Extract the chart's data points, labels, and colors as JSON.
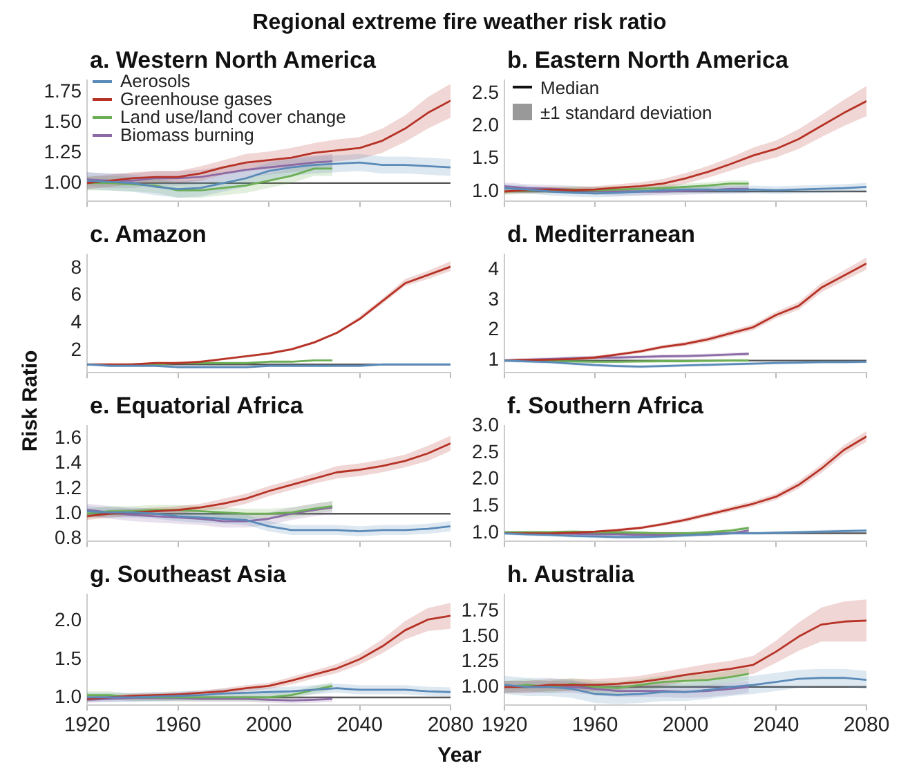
{
  "chart_data": [
    {
      "type": "line",
      "title": "a. Western North America",
      "annotations": [
        "Regional extreme fire weather risk ratio"
      ],
      "x": [
        1920,
        1930,
        1940,
        1950,
        1960,
        1970,
        1980,
        1990,
        2000,
        2010,
        2020,
        2030,
        2040,
        2050,
        2060,
        2070,
        2080
      ],
      "xlim": [
        1920,
        2080
      ],
      "xticks": [
        1920,
        1960,
        2000,
        2040,
        2080
      ],
      "ylim": [
        0.85,
        1.85
      ],
      "yticks": [
        {
          "value": 1,
          "label": "1.00"
        },
        1.25,
        {
          "value": 1.5,
          "label": "1.50"
        },
        1.75
      ],
      "tick_labels": "y",
      "legend": "top left",
      "ref_lines": [
        {
          "axis": "y",
          "value": 1,
          "color": "#555555"
        }
      ],
      "series": [
        {
          "name": "Aerosols",
          "color": "#5a8ab8",
          "values": [
            1.02,
            1.01,
            1.0,
            0.97,
            0.95,
            0.96,
            1.0,
            1.04,
            1.1,
            1.13,
            1.15,
            1.16,
            1.17,
            1.15,
            1.15,
            1.14,
            1.13
          ],
          "lower": [
            0.95,
            0.94,
            0.93,
            0.9,
            0.88,
            0.89,
            0.93,
            0.97,
            1.03,
            1.06,
            1.08,
            1.09,
            1.1,
            1.08,
            1.08,
            1.07,
            1.06
          ],
          "upper": [
            1.09,
            1.08,
            1.07,
            1.04,
            1.02,
            1.03,
            1.07,
            1.11,
            1.17,
            1.2,
            1.22,
            1.23,
            1.24,
            1.22,
            1.22,
            1.21,
            1.2
          ]
        },
        {
          "name": "Greenhouse gases",
          "color": "#b63226",
          "values": [
            1.0,
            1.02,
            1.04,
            1.05,
            1.05,
            1.08,
            1.13,
            1.17,
            1.19,
            1.21,
            1.25,
            1.27,
            1.29,
            1.35,
            1.45,
            1.58,
            1.68
          ],
          "lower": [
            0.95,
            0.97,
            0.99,
            1.0,
            1.0,
            1.02,
            1.07,
            1.1,
            1.12,
            1.13,
            1.17,
            1.18,
            1.2,
            1.25,
            1.34,
            1.45,
            1.54
          ],
          "upper": [
            1.05,
            1.07,
            1.09,
            1.1,
            1.1,
            1.14,
            1.19,
            1.24,
            1.26,
            1.29,
            1.33,
            1.36,
            1.38,
            1.45,
            1.56,
            1.71,
            1.82
          ]
        },
        {
          "name": "Land use/land cover change",
          "color": "#6cae55",
          "x": [
            1920,
            1930,
            1940,
            1950,
            1960,
            1970,
            1980,
            1990,
            2000,
            2010,
            2020,
            2028
          ],
          "values": [
            1.0,
            1.0,
            0.99,
            0.98,
            0.94,
            0.94,
            0.96,
            0.98,
            1.02,
            1.06,
            1.12,
            1.12
          ],
          "lower": [
            0.94,
            0.94,
            0.93,
            0.92,
            0.88,
            0.88,
            0.9,
            0.92,
            0.96,
            1.0,
            1.06,
            1.06
          ],
          "upper": [
            1.06,
            1.06,
            1.05,
            1.04,
            1.0,
            1.0,
            1.02,
            1.04,
            1.08,
            1.12,
            1.18,
            1.18
          ]
        },
        {
          "name": "Biomass burning",
          "color": "#8b6aa6",
          "x": [
            1920,
            1930,
            1940,
            1950,
            1960,
            1970,
            1980,
            1990,
            2000,
            2010,
            2020,
            2028
          ],
          "values": [
            1.03,
            1.02,
            1.02,
            1.04,
            1.04,
            1.05,
            1.08,
            1.11,
            1.13,
            1.15,
            1.17,
            1.18
          ],
          "lower": [
            0.97,
            0.96,
            0.96,
            0.98,
            0.98,
            0.99,
            1.02,
            1.05,
            1.07,
            1.09,
            1.11,
            1.12
          ],
          "upper": [
            1.09,
            1.08,
            1.08,
            1.1,
            1.1,
            1.11,
            1.14,
            1.17,
            1.19,
            1.21,
            1.23,
            1.24
          ]
        }
      ]
    },
    {
      "type": "line",
      "title": "b. Eastern North America",
      "annotations": [
        "Median",
        "±1 standard deviation"
      ],
      "x": [
        1920,
        1930,
        1940,
        1950,
        1960,
        1970,
        1980,
        1990,
        2000,
        2010,
        2020,
        2030,
        2040,
        2050,
        2060,
        2070,
        2080
      ],
      "xlim": [
        1920,
        2080
      ],
      "xticks": [
        1920,
        1960,
        2000,
        2040,
        2080
      ],
      "ylim": [
        0.85,
        2.7
      ],
      "yticks": [
        {
          "value": 1,
          "label": "1.0"
        },
        1.5,
        {
          "value": 2,
          "label": "2.0"
        },
        2.5
      ],
      "tick_labels": "y",
      "ref_lines": [
        {
          "axis": "y",
          "value": 1,
          "color": "#555555"
        }
      ],
      "series": [
        {
          "color": "#5a8ab8",
          "values": [
            1.05,
            1.03,
            1.0,
            0.98,
            0.97,
            0.98,
            1.0,
            1.02,
            1.03,
            1.03,
            1.02,
            1.03,
            1.02,
            1.03,
            1.04,
            1.05,
            1.07
          ],
          "lower": [
            0.99,
            0.97,
            0.94,
            0.92,
            0.91,
            0.92,
            0.94,
            0.96,
            0.97,
            0.97,
            0.96,
            0.97,
            0.96,
            0.97,
            0.98,
            0.99,
            1.01
          ],
          "upper": [
            1.11,
            1.09,
            1.06,
            1.04,
            1.03,
            1.04,
            1.06,
            1.08,
            1.09,
            1.09,
            1.08,
            1.09,
            1.08,
            1.09,
            1.1,
            1.11,
            1.13
          ]
        },
        {
          "color": "#b63226",
          "values": [
            1.0,
            1.02,
            1.03,
            1.02,
            1.03,
            1.06,
            1.08,
            1.12,
            1.2,
            1.3,
            1.42,
            1.55,
            1.65,
            1.8,
            2.0,
            2.2,
            2.38
          ],
          "lower": [
            0.96,
            0.98,
            0.99,
            0.98,
            0.98,
            1.01,
            1.02,
            1.05,
            1.12,
            1.21,
            1.32,
            1.43,
            1.52,
            1.65,
            1.83,
            2.0,
            2.15
          ],
          "upper": [
            1.04,
            1.06,
            1.07,
            1.06,
            1.08,
            1.11,
            1.14,
            1.19,
            1.28,
            1.39,
            1.52,
            1.67,
            1.78,
            1.95,
            2.17,
            2.4,
            2.61
          ]
        },
        {
          "color": "#6cae55",
          "x": [
            1920,
            1930,
            1940,
            1950,
            1960,
            1970,
            1980,
            1990,
            2000,
            2010,
            2020,
            2028
          ],
          "values": [
            1.0,
            1.01,
            1.02,
            1.03,
            1.02,
            1.03,
            1.04,
            1.05,
            1.07,
            1.09,
            1.12,
            1.12
          ],
          "lower": [
            0.95,
            0.96,
            0.97,
            0.98,
            0.97,
            0.98,
            0.99,
            1.0,
            1.02,
            1.04,
            1.07,
            1.07
          ],
          "upper": [
            1.05,
            1.06,
            1.07,
            1.08,
            1.07,
            1.08,
            1.09,
            1.1,
            1.12,
            1.14,
            1.17,
            1.17
          ]
        },
        {
          "color": "#8b6aa6",
          "x": [
            1920,
            1930,
            1940,
            1950,
            1960,
            1970,
            1980,
            1990,
            2000,
            2010,
            2020,
            2028
          ],
          "values": [
            1.08,
            1.05,
            1.04,
            1.03,
            1.01,
            1.0,
            1.0,
            1.0,
            1.01,
            1.02,
            1.04,
            1.04
          ],
          "lower": [
            1.02,
            0.99,
            0.98,
            0.97,
            0.95,
            0.94,
            0.94,
            0.94,
            0.95,
            0.96,
            0.98,
            0.98
          ],
          "upper": [
            1.14,
            1.11,
            1.1,
            1.09,
            1.07,
            1.06,
            1.06,
            1.06,
            1.07,
            1.08,
            1.1,
            1.1
          ]
        }
      ]
    },
    {
      "type": "line",
      "title": "c. Amazon",
      "x": [
        1920,
        1930,
        1940,
        1950,
        1960,
        1970,
        1980,
        1990,
        2000,
        2010,
        2020,
        2030,
        2040,
        2050,
        2060,
        2070,
        2080
      ],
      "xlim": [
        1920,
        2080
      ],
      "xticks": [
        1920,
        1960,
        2000,
        2040,
        2080
      ],
      "ylim": [
        0.4,
        9
      ],
      "yticks": [
        2,
        4,
        6,
        8
      ],
      "tick_labels": "y",
      "ref_lines": [
        {
          "axis": "y",
          "value": 1,
          "color": "#555555"
        }
      ],
      "series": [
        {
          "color": "#5a8ab8",
          "values": [
            1.0,
            0.9,
            0.9,
            0.9,
            0.8,
            0.8,
            0.8,
            0.8,
            0.9,
            0.9,
            0.9,
            0.9,
            0.9,
            1.0,
            1.0,
            1.0,
            1.0
          ]
        },
        {
          "color": "#b63226",
          "values": [
            1.0,
            1.0,
            1.0,
            1.1,
            1.1,
            1.2,
            1.4,
            1.6,
            1.8,
            2.1,
            2.6,
            3.3,
            4.3,
            5.6,
            6.9,
            7.5,
            8.1
          ],
          "lower": [
            1.0,
            1.0,
            1.0,
            1.0,
            1.1,
            1.1,
            1.3,
            1.5,
            1.7,
            2.0,
            2.5,
            3.2,
            4.2,
            5.4,
            6.7,
            7.2,
            7.8
          ],
          "upper": [
            1.0,
            1.0,
            1.1,
            1.1,
            1.1,
            1.3,
            1.4,
            1.6,
            1.9,
            2.2,
            2.7,
            3.4,
            4.5,
            5.8,
            7.2,
            7.8,
            8.5
          ]
        },
        {
          "color": "#6cae55",
          "x": [
            1940,
            1950,
            1960,
            1970,
            1980,
            1990,
            2000,
            2010,
            2020,
            2028
          ],
          "values": [
            1.0,
            1.0,
            1.1,
            1.1,
            1.1,
            1.1,
            1.2,
            1.2,
            1.3,
            1.3
          ]
        }
      ]
    },
    {
      "type": "line",
      "title": "d. Mediterranean",
      "x": [
        1920,
        1930,
        1940,
        1950,
        1960,
        1970,
        1980,
        1990,
        2000,
        2010,
        2020,
        2030,
        2040,
        2050,
        2060,
        2070,
        2080
      ],
      "xlim": [
        1920,
        2080
      ],
      "xticks": [
        1920,
        1960,
        2000,
        2040,
        2080
      ],
      "ylim": [
        0.6,
        4.5
      ],
      "yticks": [
        1,
        2,
        3,
        4
      ],
      "tick_labels": "y",
      "ref_lines": [
        {
          "axis": "y",
          "value": 1,
          "color": "#555555"
        }
      ],
      "series": [
        {
          "color": "#5a8ab8",
          "values": [
            1.0,
            0.97,
            0.95,
            0.9,
            0.85,
            0.82,
            0.8,
            0.82,
            0.84,
            0.86,
            0.88,
            0.9,
            0.92,
            0.93,
            0.95,
            0.95,
            0.96
          ],
          "lower": [
            0.95,
            0.92,
            0.9,
            0.85,
            0.8,
            0.77,
            0.75,
            0.77,
            0.79,
            0.81,
            0.83,
            0.85,
            0.87,
            0.88,
            0.9,
            0.9,
            0.91
          ],
          "upper": [
            1.05,
            1.02,
            1.0,
            0.95,
            0.9,
            0.87,
            0.85,
            0.87,
            0.89,
            0.91,
            0.93,
            0.95,
            0.97,
            0.98,
            1.0,
            1.0,
            1.01
          ]
        },
        {
          "color": "#b63226",
          "values": [
            1.0,
            1.02,
            1.03,
            1.05,
            1.1,
            1.2,
            1.3,
            1.45,
            1.55,
            1.7,
            1.9,
            2.1,
            2.5,
            2.8,
            3.4,
            3.8,
            4.2
          ],
          "lower": [
            0.96,
            0.98,
            0.99,
            1.01,
            1.05,
            1.15,
            1.24,
            1.39,
            1.48,
            1.62,
            1.81,
            2.0,
            2.39,
            2.67,
            3.25,
            3.63,
            4.0
          ],
          "upper": [
            1.04,
            1.06,
            1.07,
            1.09,
            1.15,
            1.25,
            1.36,
            1.51,
            1.62,
            1.78,
            1.99,
            2.2,
            2.61,
            2.93,
            3.55,
            3.97,
            4.4
          ]
        },
        {
          "color": "#6cae55",
          "x": [
            1920,
            1930,
            1940,
            1950,
            1960,
            1970,
            1980,
            1990,
            2000,
            2010,
            2020,
            2028
          ],
          "values": [
            1.0,
            1.0,
            0.98,
            0.97,
            0.96,
            0.96,
            0.97,
            0.98,
            0.98,
            0.99,
            1.0,
            1.0
          ],
          "lower": [
            0.95,
            0.95,
            0.93,
            0.92,
            0.91,
            0.91,
            0.92,
            0.93,
            0.93,
            0.94,
            0.95,
            0.95
          ],
          "upper": [
            1.05,
            1.05,
            1.03,
            1.02,
            1.01,
            1.01,
            1.02,
            1.03,
            1.03,
            1.04,
            1.05,
            1.05
          ]
        },
        {
          "color": "#8b6aa6",
          "x": [
            1920,
            1930,
            1940,
            1950,
            1960,
            1970,
            1980,
            1990,
            2000,
            2010,
            2020,
            2028
          ],
          "values": [
            1.0,
            1.03,
            1.05,
            1.08,
            1.1,
            1.1,
            1.12,
            1.14,
            1.15,
            1.17,
            1.2,
            1.22
          ],
          "lower": [
            0.94,
            0.97,
            0.99,
            1.02,
            1.04,
            1.04,
            1.06,
            1.08,
            1.09,
            1.11,
            1.14,
            1.16
          ],
          "upper": [
            1.06,
            1.09,
            1.11,
            1.14,
            1.16,
            1.16,
            1.18,
            1.2,
            1.21,
            1.23,
            1.26,
            1.28
          ]
        }
      ]
    },
    {
      "type": "line",
      "title": "e. Equatorial Africa",
      "ylabel": "Risk Ratio",
      "x": [
        1920,
        1930,
        1940,
        1950,
        1960,
        1970,
        1980,
        1990,
        2000,
        2010,
        2020,
        2030,
        2040,
        2050,
        2060,
        2070,
        2080
      ],
      "xlim": [
        1920,
        2080
      ],
      "xticks": [
        1920,
        1960,
        2000,
        2040,
        2080
      ],
      "ylim": [
        0.78,
        1.7
      ],
      "yticks": [
        0.8,
        {
          "value": 1,
          "label": "1.0"
        },
        1.2,
        1.4,
        1.6
      ],
      "tick_labels": "y",
      "ref_lines": [
        {
          "axis": "y",
          "value": 1,
          "color": "#555555"
        }
      ],
      "series": [
        {
          "color": "#5a8ab8",
          "values": [
            1.02,
            1.01,
            1.01,
            1.0,
            0.98,
            0.97,
            0.96,
            0.95,
            0.9,
            0.87,
            0.87,
            0.87,
            0.86,
            0.87,
            0.87,
            0.88,
            0.9
          ],
          "lower": [
            0.98,
            0.97,
            0.97,
            0.96,
            0.94,
            0.93,
            0.92,
            0.91,
            0.86,
            0.83,
            0.83,
            0.83,
            0.82,
            0.83,
            0.83,
            0.84,
            0.86
          ],
          "upper": [
            1.06,
            1.05,
            1.05,
            1.04,
            1.02,
            1.01,
            1.0,
            0.99,
            0.94,
            0.91,
            0.91,
            0.91,
            0.9,
            0.91,
            0.91,
            0.92,
            0.94
          ]
        },
        {
          "color": "#b63226",
          "values": [
            0.98,
            1.0,
            1.01,
            1.02,
            1.03,
            1.05,
            1.08,
            1.12,
            1.18,
            1.23,
            1.28,
            1.33,
            1.35,
            1.38,
            1.42,
            1.48,
            1.56
          ],
          "lower": [
            0.95,
            0.97,
            0.98,
            0.99,
            1.0,
            1.02,
            1.04,
            1.08,
            1.14,
            1.19,
            1.24,
            1.28,
            1.3,
            1.33,
            1.37,
            1.42,
            1.5
          ],
          "upper": [
            1.01,
            1.03,
            1.04,
            1.05,
            1.06,
            1.08,
            1.12,
            1.16,
            1.22,
            1.27,
            1.32,
            1.38,
            1.4,
            1.43,
            1.47,
            1.54,
            1.62
          ]
        },
        {
          "color": "#6cae55",
          "x": [
            1920,
            1930,
            1940,
            1950,
            1960,
            1970,
            1980,
            1990,
            2000,
            2010,
            2020,
            2028
          ],
          "values": [
            1.0,
            1.02,
            1.02,
            1.03,
            1.03,
            1.02,
            1.01,
            1.0,
            1.0,
            1.01,
            1.04,
            1.06
          ],
          "lower": [
            0.96,
            0.98,
            0.98,
            0.99,
            0.99,
            0.98,
            0.97,
            0.96,
            0.96,
            0.97,
            1.0,
            1.02
          ],
          "upper": [
            1.04,
            1.06,
            1.06,
            1.07,
            1.07,
            1.06,
            1.05,
            1.04,
            1.04,
            1.05,
            1.08,
            1.1
          ]
        },
        {
          "color": "#8b6aa6",
          "x": [
            1920,
            1930,
            1940,
            1950,
            1960,
            1970,
            1980,
            1990,
            2000,
            2010,
            2020,
            2028
          ],
          "values": [
            1.03,
            1.01,
            0.99,
            0.98,
            0.97,
            0.96,
            0.94,
            0.94,
            0.96,
            1.0,
            1.03,
            1.05
          ],
          "lower": [
            0.98,
            0.96,
            0.94,
            0.93,
            0.92,
            0.91,
            0.89,
            0.89,
            0.91,
            0.95,
            0.98,
            1.0
          ],
          "upper": [
            1.08,
            1.06,
            1.04,
            1.03,
            1.02,
            1.01,
            0.99,
            0.99,
            1.01,
            1.05,
            1.08,
            1.1
          ]
        }
      ]
    },
    {
      "type": "line",
      "title": "f. Southern Africa",
      "x": [
        1920,
        1930,
        1940,
        1950,
        1960,
        1970,
        1980,
        1990,
        2000,
        2010,
        2020,
        2030,
        2040,
        2050,
        2060,
        2070,
        2080
      ],
      "xlim": [
        1920,
        2080
      ],
      "xticks": [
        1920,
        1960,
        2000,
        2040,
        2080
      ],
      "ylim": [
        0.85,
        3.0
      ],
      "yticks": [
        {
          "value": 1,
          "label": "1.0"
        },
        1.5,
        {
          "value": 2,
          "label": "2.0"
        },
        2.5,
        {
          "value": 3,
          "label": "3.0"
        }
      ],
      "tick_labels": "y",
      "ref_lines": [
        {
          "axis": "y",
          "value": 1,
          "color": "#555555"
        }
      ],
      "series": [
        {
          "color": "#5a8ab8",
          "values": [
            1.0,
            0.98,
            0.97,
            0.95,
            0.94,
            0.93,
            0.93,
            0.94,
            0.96,
            0.98,
            1.0,
            1.0,
            1.01,
            1.02,
            1.03,
            1.04,
            1.05
          ],
          "lower": [
            0.97,
            0.95,
            0.94,
            0.92,
            0.91,
            0.9,
            0.9,
            0.91,
            0.93,
            0.95,
            0.97,
            0.97,
            0.98,
            0.99,
            1.0,
            1.01,
            1.02
          ],
          "upper": [
            1.03,
            1.01,
            1.0,
            0.98,
            0.97,
            0.96,
            0.96,
            0.97,
            0.99,
            1.01,
            1.03,
            1.03,
            1.04,
            1.05,
            1.06,
            1.07,
            1.08
          ]
        },
        {
          "color": "#b63226",
          "values": [
            1.0,
            1.0,
            1.0,
            1.01,
            1.03,
            1.06,
            1.1,
            1.17,
            1.25,
            1.35,
            1.45,
            1.55,
            1.68,
            1.9,
            2.2,
            2.55,
            2.8
          ],
          "lower": [
            0.98,
            0.98,
            0.98,
            0.99,
            1.01,
            1.03,
            1.07,
            1.14,
            1.21,
            1.31,
            1.4,
            1.5,
            1.62,
            1.83,
            2.12,
            2.46,
            2.7
          ],
          "upper": [
            1.02,
            1.02,
            1.02,
            1.03,
            1.05,
            1.09,
            1.13,
            1.2,
            1.29,
            1.39,
            1.5,
            1.6,
            1.74,
            1.97,
            2.28,
            2.64,
            2.9
          ]
        },
        {
          "color": "#6cae55",
          "x": [
            1920,
            1930,
            1940,
            1950,
            1960,
            1970,
            1980,
            1990,
            2000,
            2010,
            2020,
            2028
          ],
          "values": [
            1.02,
            1.02,
            1.02,
            1.03,
            1.02,
            1.02,
            1.01,
            1.0,
            1.0,
            1.02,
            1.05,
            1.1
          ],
          "lower": [
            0.99,
            0.99,
            0.99,
            1.0,
            0.99,
            0.99,
            0.98,
            0.97,
            0.97,
            0.99,
            1.02,
            1.07
          ],
          "upper": [
            1.05,
            1.05,
            1.05,
            1.06,
            1.05,
            1.05,
            1.04,
            1.03,
            1.03,
            1.05,
            1.08,
            1.13
          ]
        },
        {
          "color": "#8b6aa6",
          "x": [
            1920,
            1930,
            1940,
            1950,
            1960,
            1970,
            1980,
            1990,
            2000,
            2010,
            2020,
            2028
          ],
          "values": [
            1.0,
            1.0,
            1.0,
            0.99,
            0.98,
            0.98,
            0.97,
            0.97,
            0.97,
            0.98,
            1.0,
            1.05
          ],
          "lower": [
            0.97,
            0.97,
            0.97,
            0.96,
            0.95,
            0.95,
            0.94,
            0.94,
            0.94,
            0.95,
            0.97,
            1.02
          ],
          "upper": [
            1.03,
            1.03,
            1.03,
            1.02,
            1.01,
            1.01,
            1.0,
            1.0,
            1.0,
            1.01,
            1.03,
            1.08
          ]
        }
      ]
    },
    {
      "type": "line",
      "title": "g. Southeast Asia",
      "xlabel": "Year",
      "x": [
        1920,
        1930,
        1940,
        1950,
        1960,
        1970,
        1980,
        1990,
        2000,
        2010,
        2020,
        2030,
        2040,
        2050,
        2060,
        2070,
        2080
      ],
      "xlim": [
        1920,
        2080
      ],
      "xticks": [
        1920,
        1960,
        2000,
        2040,
        2080
      ],
      "ylim": [
        0.9,
        2.35
      ],
      "yticks": [
        {
          "value": 1,
          "label": "1.0"
        },
        1.5,
        {
          "value": 2,
          "label": "2.0"
        }
      ],
      "ref_lines": [
        {
          "axis": "y",
          "value": 1,
          "color": "#555555"
        }
      ],
      "series": [
        {
          "color": "#5a8ab8",
          "values": [
            1.0,
            1.0,
            1.0,
            1.01,
            1.02,
            1.03,
            1.05,
            1.06,
            1.07,
            1.08,
            1.1,
            1.12,
            1.1,
            1.1,
            1.1,
            1.08,
            1.07
          ],
          "lower": [
            0.94,
            0.94,
            0.94,
            0.95,
            0.96,
            0.97,
            0.99,
            1.0,
            1.01,
            1.02,
            1.04,
            1.06,
            1.04,
            1.04,
            1.04,
            1.02,
            1.01
          ],
          "upper": [
            1.06,
            1.06,
            1.06,
            1.07,
            1.08,
            1.09,
            1.11,
            1.12,
            1.13,
            1.14,
            1.16,
            1.18,
            1.16,
            1.16,
            1.16,
            1.14,
            1.13
          ]
        },
        {
          "color": "#b63226",
          "values": [
            0.98,
            1.0,
            1.02,
            1.03,
            1.04,
            1.06,
            1.08,
            1.12,
            1.15,
            1.22,
            1.3,
            1.38,
            1.5,
            1.67,
            1.88,
            2.02,
            2.07
          ],
          "lower": [
            0.95,
            0.97,
            0.99,
            1.0,
            1.01,
            1.03,
            1.04,
            1.08,
            1.11,
            1.17,
            1.25,
            1.32,
            1.43,
            1.58,
            1.76,
            1.87,
            1.9
          ],
          "upper": [
            1.01,
            1.03,
            1.05,
            1.06,
            1.07,
            1.09,
            1.12,
            1.16,
            1.19,
            1.27,
            1.35,
            1.44,
            1.57,
            1.76,
            2.0,
            2.17,
            2.24
          ]
        },
        {
          "color": "#6cae55",
          "x": [
            1920,
            1930,
            1940,
            1950,
            1960,
            1970,
            1980,
            1990,
            2000,
            2010,
            2020,
            2028
          ],
          "values": [
            1.03,
            1.03,
            1.0,
            1.0,
            1.0,
            1.0,
            1.0,
            1.0,
            1.0,
            1.03,
            1.1,
            1.15
          ],
          "lower": [
            0.98,
            0.98,
            0.95,
            0.95,
            0.95,
            0.95,
            0.95,
            0.95,
            0.95,
            0.98,
            1.05,
            1.1
          ],
          "upper": [
            1.08,
            1.08,
            1.05,
            1.05,
            1.05,
            1.05,
            1.05,
            1.05,
            1.05,
            1.08,
            1.15,
            1.2
          ]
        },
        {
          "color": "#8b6aa6",
          "x": [
            1920,
            1930,
            1940,
            1950,
            1960,
            1970,
            1980,
            1990,
            2000,
            2010,
            2020,
            2028
          ],
          "values": [
            0.97,
            0.98,
            0.99,
            0.99,
            0.99,
            0.98,
            0.98,
            0.98,
            0.97,
            0.96,
            0.97,
            0.98
          ],
          "lower": [
            0.93,
            0.94,
            0.95,
            0.95,
            0.95,
            0.94,
            0.94,
            0.94,
            0.93,
            0.92,
            0.93,
            0.94
          ],
          "upper": [
            1.01,
            1.02,
            1.03,
            1.03,
            1.03,
            1.02,
            1.02,
            1.02,
            1.01,
            1.0,
            1.01,
            1.02
          ]
        }
      ]
    },
    {
      "type": "line",
      "title": "h. Australia",
      "x": [
        1920,
        1930,
        1940,
        1950,
        1960,
        1970,
        1980,
        1990,
        2000,
        2010,
        2020,
        2030,
        2040,
        2050,
        2060,
        2070,
        2080
      ],
      "xlim": [
        1920,
        2080
      ],
      "xticks": [
        1920,
        1960,
        2000,
        2040,
        2080
      ],
      "ylim": [
        0.82,
        1.92
      ],
      "yticks": [
        {
          "value": 1,
          "label": "1.00"
        },
        1.25,
        {
          "value": 1.5,
          "label": "1.50"
        },
        1.75
      ],
      "ref_lines": [
        {
          "axis": "y",
          "value": 1,
          "color": "#555555"
        }
      ],
      "series": [
        {
          "color": "#5a8ab8",
          "values": [
            1.02,
            1.0,
            1.0,
            0.98,
            0.93,
            0.92,
            0.93,
            0.95,
            0.95,
            0.97,
            1.0,
            1.02,
            1.05,
            1.08,
            1.09,
            1.09,
            1.07
          ],
          "lower": [
            0.93,
            0.91,
            0.91,
            0.89,
            0.84,
            0.83,
            0.84,
            0.86,
            0.86,
            0.88,
            0.91,
            0.93,
            0.96,
            0.99,
            1.0,
            1.0,
            0.98
          ],
          "upper": [
            1.11,
            1.09,
            1.09,
            1.07,
            1.02,
            1.01,
            1.02,
            1.04,
            1.04,
            1.06,
            1.09,
            1.11,
            1.14,
            1.17,
            1.18,
            1.18,
            1.16
          ]
        },
        {
          "color": "#b63226",
          "values": [
            1.0,
            1.0,
            1.02,
            1.02,
            1.02,
            1.03,
            1.05,
            1.08,
            1.12,
            1.15,
            1.18,
            1.22,
            1.35,
            1.5,
            1.62,
            1.65,
            1.66
          ],
          "lower": [
            0.94,
            0.94,
            0.96,
            0.96,
            0.96,
            0.97,
            0.99,
            1.01,
            1.05,
            1.07,
            1.1,
            1.13,
            1.24,
            1.36,
            1.45,
            1.45,
            1.45
          ],
          "upper": [
            1.06,
            1.06,
            1.08,
            1.08,
            1.08,
            1.09,
            1.11,
            1.15,
            1.19,
            1.23,
            1.26,
            1.31,
            1.46,
            1.64,
            1.79,
            1.85,
            1.87
          ]
        },
        {
          "color": "#6cae55",
          "x": [
            1920,
            1930,
            1940,
            1950,
            1960,
            1970,
            1980,
            1990,
            2000,
            2010,
            2020,
            2028
          ],
          "values": [
            1.0,
            1.02,
            1.0,
            1.03,
            1.0,
            0.99,
            1.02,
            1.05,
            1.06,
            1.07,
            1.1,
            1.13
          ],
          "lower": [
            0.94,
            0.96,
            0.94,
            0.97,
            0.94,
            0.93,
            0.96,
            0.99,
            1.0,
            1.01,
            1.04,
            1.07
          ],
          "upper": [
            1.06,
            1.08,
            1.06,
            1.09,
            1.06,
            1.05,
            1.08,
            1.11,
            1.12,
            1.13,
            1.16,
            1.19
          ]
        },
        {
          "color": "#8b6aa6",
          "x": [
            1920,
            1930,
            1940,
            1950,
            1960,
            1970,
            1980,
            1990,
            2000,
            2010,
            2020,
            2028
          ],
          "values": [
            1.0,
            1.0,
            1.0,
            1.0,
            0.98,
            0.96,
            0.96,
            0.96,
            0.95,
            0.96,
            0.98,
            1.0
          ],
          "lower": [
            0.94,
            0.94,
            0.94,
            0.94,
            0.92,
            0.9,
            0.9,
            0.9,
            0.89,
            0.9,
            0.92,
            0.94
          ],
          "upper": [
            1.06,
            1.06,
            1.06,
            1.06,
            1.04,
            1.02,
            1.02,
            1.02,
            1.01,
            1.02,
            1.04,
            1.06
          ]
        }
      ]
    }
  ]
}
